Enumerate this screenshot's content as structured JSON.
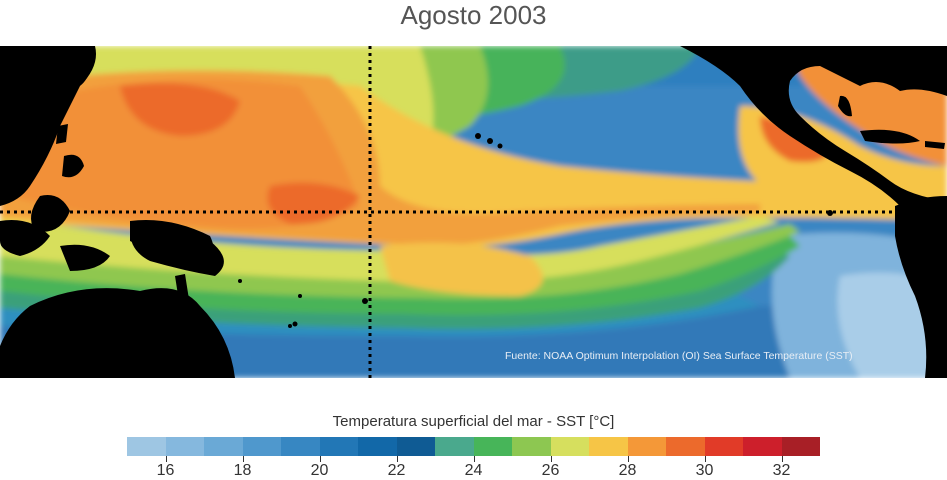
{
  "title": "Agosto 2003",
  "source_note": "Fuente: NOAA Optimum Interpolation (OI) Sea Surface Temperature (SST)",
  "colorbar": {
    "title": "Temperatura superficial del mar - SST  [°C]",
    "unit": "°C",
    "min": 15,
    "max": 33,
    "tick_labels": [
      "16",
      "18",
      "20",
      "22",
      "24",
      "26",
      "28",
      "30",
      "32"
    ],
    "tick_values": [
      16,
      18,
      20,
      22,
      24,
      26,
      28,
      30,
      32
    ],
    "colors": [
      "#9ec6e3",
      "#85b8de",
      "#6aa9d6",
      "#4f98cd",
      "#3787c2",
      "#2277b6",
      "#1268a8",
      "#0f5b94",
      "#4aa98d",
      "#47b559",
      "#8dc751",
      "#d6df5e",
      "#f6c546",
      "#f49838",
      "#ec6a2c",
      "#e13b28",
      "#cd1f2b",
      "#a81f26"
    ]
  },
  "map": {
    "land_color": "#000000",
    "grid_style": "dotted",
    "equator_line": true,
    "dateline_line": true
  }
}
